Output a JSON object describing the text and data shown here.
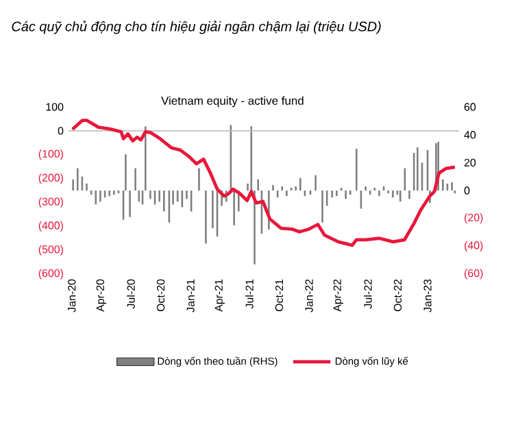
{
  "chart_data": {
    "type": "bar",
    "title": "Các quỹ chủ động cho tín hiệu giải ngân chậm lại (triệu USD)",
    "annotations": [
      "Vietnam equity - active fund"
    ],
    "xlim": [
      "2019-12-22",
      "2023-04-08"
    ],
    "xticks": [
      {
        "value": "2020-01",
        "label": "Jan-20"
      },
      {
        "value": "2020-04",
        "label": "Apr-20"
      },
      {
        "value": "2020-07",
        "label": "Jul-20"
      },
      {
        "value": "2020-10",
        "label": "Oct-20"
      },
      {
        "value": "2021-01",
        "label": "Jan-21"
      },
      {
        "value": "2021-04",
        "label": "Apr-21"
      },
      {
        "value": "2021-07",
        "label": "Jul-21"
      },
      {
        "value": "2021-10",
        "label": "Oct-21"
      },
      {
        "value": "2022-01",
        "label": "Jan-22"
      },
      {
        "value": "2022-04",
        "label": "Apr-22"
      },
      {
        "value": "2022-07",
        "label": "Jul-22"
      },
      {
        "value": "2022-10",
        "label": "Oct-22"
      },
      {
        "value": "2023-01",
        "label": "Jan-23"
      }
    ],
    "ylim": [
      -600,
      100
    ],
    "yticks": [
      100,
      0,
      {
        "value": -100,
        "label": "(100)"
      },
      {
        "value": -200,
        "label": "(200)"
      },
      {
        "value": -300,
        "label": "(300)"
      },
      {
        "value": -400,
        "label": "(400)"
      },
      {
        "value": -500,
        "label": "(500)"
      },
      {
        "value": -600,
        "label": "(600)"
      }
    ],
    "y2lim": [
      -60,
      60
    ],
    "y2ticks": [
      60,
      40,
      20,
      0,
      {
        "value": -20,
        "label": "(20)"
      },
      {
        "value": -40,
        "label": "(40)"
      },
      {
        "value": -60,
        "label": "(60)"
      }
    ],
    "ref_lines": [
      {
        "axis": "y",
        "value": 0,
        "color": "#c0c0c0"
      }
    ],
    "legend": "bottom",
    "series": [
      {
        "name": "Dòng vốn theo tuần (RHS)",
        "axis": "y2",
        "color": "#7f7f7f",
        "x": [
          "2020-01-05",
          "2020-01-19",
          "2020-02-02",
          "2020-02-16",
          "2020-03-01",
          "2020-03-15",
          "2020-03-29",
          "2020-04-12",
          "2020-04-26",
          "2020-05-10",
          "2020-05-24",
          "2020-06-08",
          "2020-06-15",
          "2020-06-28",
          "2020-07-15",
          "2020-07-26",
          "2020-08-06",
          "2020-08-15",
          "2020-08-30",
          "2020-09-13",
          "2020-09-27",
          "2020-10-11",
          "2020-10-27",
          "2020-11-08",
          "2020-11-22",
          "2020-12-06",
          "2020-12-20",
          "2021-01-03",
          "2021-01-27",
          "2021-02-17",
          "2021-03-10",
          "2021-03-24",
          "2021-04-07",
          "2021-04-21",
          "2021-05-05",
          "2021-05-15",
          "2021-05-29",
          "2021-06-12",
          "2021-06-26",
          "2021-07-07",
          "2021-07-17",
          "2021-07-28",
          "2021-08-08",
          "2021-08-30",
          "2021-09-12",
          "2021-09-26",
          "2021-10-10",
          "2021-10-24",
          "2021-11-07",
          "2021-11-21",
          "2021-12-05",
          "2021-12-19",
          "2022-01-05",
          "2022-01-21",
          "2022-02-11",
          "2022-02-25",
          "2022-03-13",
          "2022-03-27",
          "2022-04-10",
          "2022-04-24",
          "2022-05-08",
          "2022-05-27",
          "2022-06-10",
          "2022-06-24",
          "2022-07-08",
          "2022-07-22",
          "2022-08-05",
          "2022-08-19",
          "2022-09-02",
          "2022-09-16",
          "2022-09-30",
          "2022-10-09",
          "2022-10-23",
          "2022-11-06",
          "2022-11-20",
          "2022-12-01",
          "2022-12-15",
          "2023-01-01",
          "2023-01-08",
          "2023-01-27",
          "2023-02-03",
          "2023-02-17",
          "2023-03-03",
          "2023-03-17",
          "2023-03-26"
        ],
        "values": [
          8,
          16,
          10,
          5,
          -3,
          -10,
          -8,
          -5,
          -4,
          -3,
          -2,
          -21,
          26,
          -19,
          16,
          -8,
          -10,
          46,
          -6,
          -10,
          -8,
          -15,
          -23,
          -10,
          -8,
          -12,
          -6,
          -15,
          16,
          -38,
          -27,
          -33,
          -11,
          -8,
          47,
          -25,
          -15,
          null,
          5,
          46,
          -53,
          8,
          -31,
          -28,
          4,
          -5,
          3,
          -4,
          2,
          3,
          9,
          -4,
          -3,
          11,
          -23,
          -11,
          -5,
          -4,
          2,
          -6,
          -3,
          30,
          -13,
          3,
          -3,
          2,
          -4,
          3,
          -2,
          -5,
          -3,
          -8,
          16,
          -6,
          27,
          31,
          20,
          29,
          -9,
          34,
          35,
          8,
          5,
          6,
          -2
        ]
      },
      {
        "name": "Dòng vốn lũy kế",
        "type": "line",
        "axis": "y",
        "color": "#e8173b",
        "x": [
          "2020-01-03",
          "2020-02-03",
          "2020-02-16",
          "2020-03-23",
          "2020-04-27",
          "2020-06-01",
          "2020-06-08",
          "2020-06-22",
          "2020-07-07",
          "2020-07-20",
          "2020-08-01",
          "2020-08-15",
          "2020-09-01",
          "2020-09-29",
          "2020-11-03",
          "2020-12-01",
          "2020-12-29",
          "2021-01-19",
          "2021-02-10",
          "2021-03-03",
          "2021-03-24",
          "2021-04-14",
          "2021-04-28",
          "2021-05-12",
          "2021-06-02",
          "2021-06-24",
          "2021-07-07",
          "2021-07-22",
          "2021-08-12",
          "2021-09-02",
          "2021-10-07",
          "2021-11-11",
          "2021-12-02",
          "2021-12-31",
          "2022-01-28",
          "2022-02-18",
          "2022-04-01",
          "2022-05-14",
          "2022-05-27",
          "2022-06-25",
          "2022-08-06",
          "2022-09-17",
          "2022-10-22",
          "2022-11-20",
          "2022-12-11",
          "2023-01-08",
          "2023-01-22",
          "2023-02-05",
          "2023-02-26",
          "2023-03-26"
        ],
        "values": [
          6,
          44,
          44,
          15,
          8,
          -4,
          -33,
          -13,
          -42,
          -27,
          -38,
          -4,
          -8,
          -33,
          -71,
          -81,
          -110,
          -138,
          -119,
          -177,
          -244,
          -273,
          -263,
          -244,
          -263,
          -292,
          -254,
          -302,
          -296,
          -369,
          -408,
          -412,
          -423,
          -412,
          -392,
          -437,
          -465,
          -479,
          -456,
          -456,
          -450,
          -465,
          -456,
          -388,
          -331,
          -273,
          -254,
          -177,
          -158,
          -152
        ]
      }
    ]
  }
}
